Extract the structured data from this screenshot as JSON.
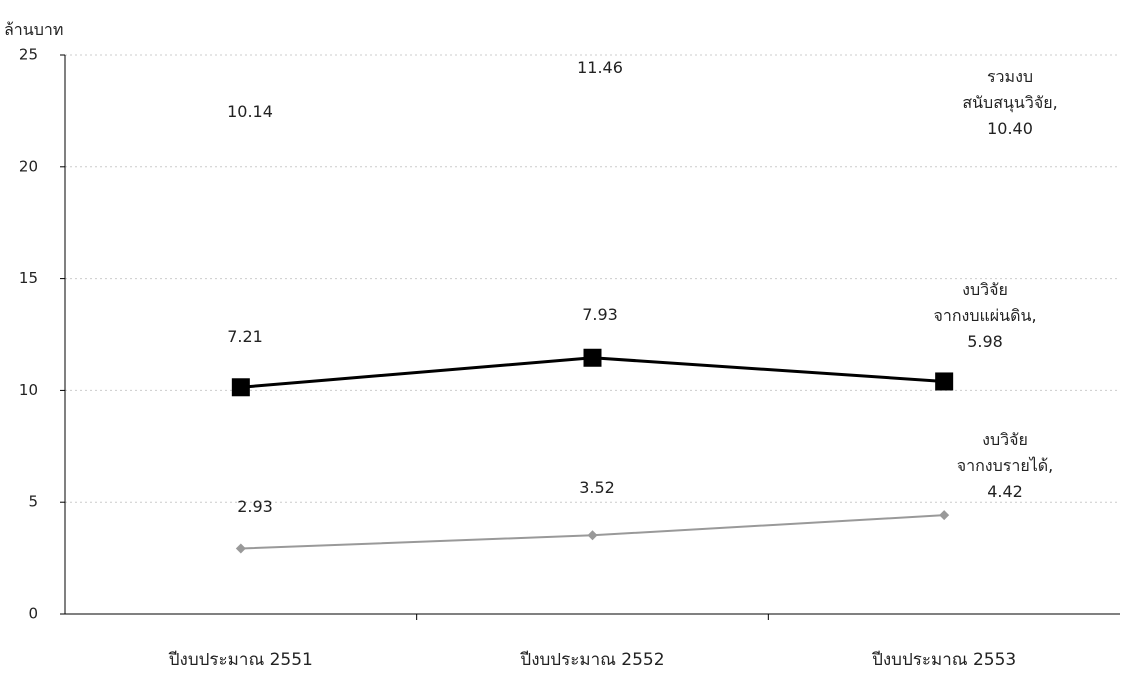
{
  "chart_data": {
    "type": "line",
    "y_label": "ล้านบาท",
    "categories": [
      "ปีงบประมาณ 2551",
      "ปีงบประมาณ 2552",
      "ปีงบประมาณ 2553"
    ],
    "series": [
      {
        "name": "รวมงบสนับสนุนวิจัย",
        "color": "#000000",
        "values": [
          10.14,
          11.46,
          10.4
        ],
        "value_labels": [
          "10.14",
          "11.46",
          "รวมงบ\nสนับสนุนวิจัย, 10.40"
        ]
      },
      {
        "name": "งบวิจัยจากงบแผ่นดิน",
        "color": "#ffffff",
        "values": [
          7.21,
          7.93,
          5.98
        ],
        "value_labels": [
          "7.21",
          "7.93",
          "งบวิจัย\nจากงบแผ่นดิน, 5.98"
        ]
      },
      {
        "name": "งบวิจัยจากงบรายได้",
        "color": "#999999",
        "values": [
          2.93,
          3.52,
          4.42
        ],
        "value_labels": [
          "2.93",
          "3.52",
          "งบวิจัย\nจากงบรายได้,\n4.42"
        ]
      }
    ],
    "ylim": [
      0,
      25
    ],
    "yticks": [
      0,
      5,
      10,
      15,
      20,
      25
    ],
    "grid": true
  }
}
